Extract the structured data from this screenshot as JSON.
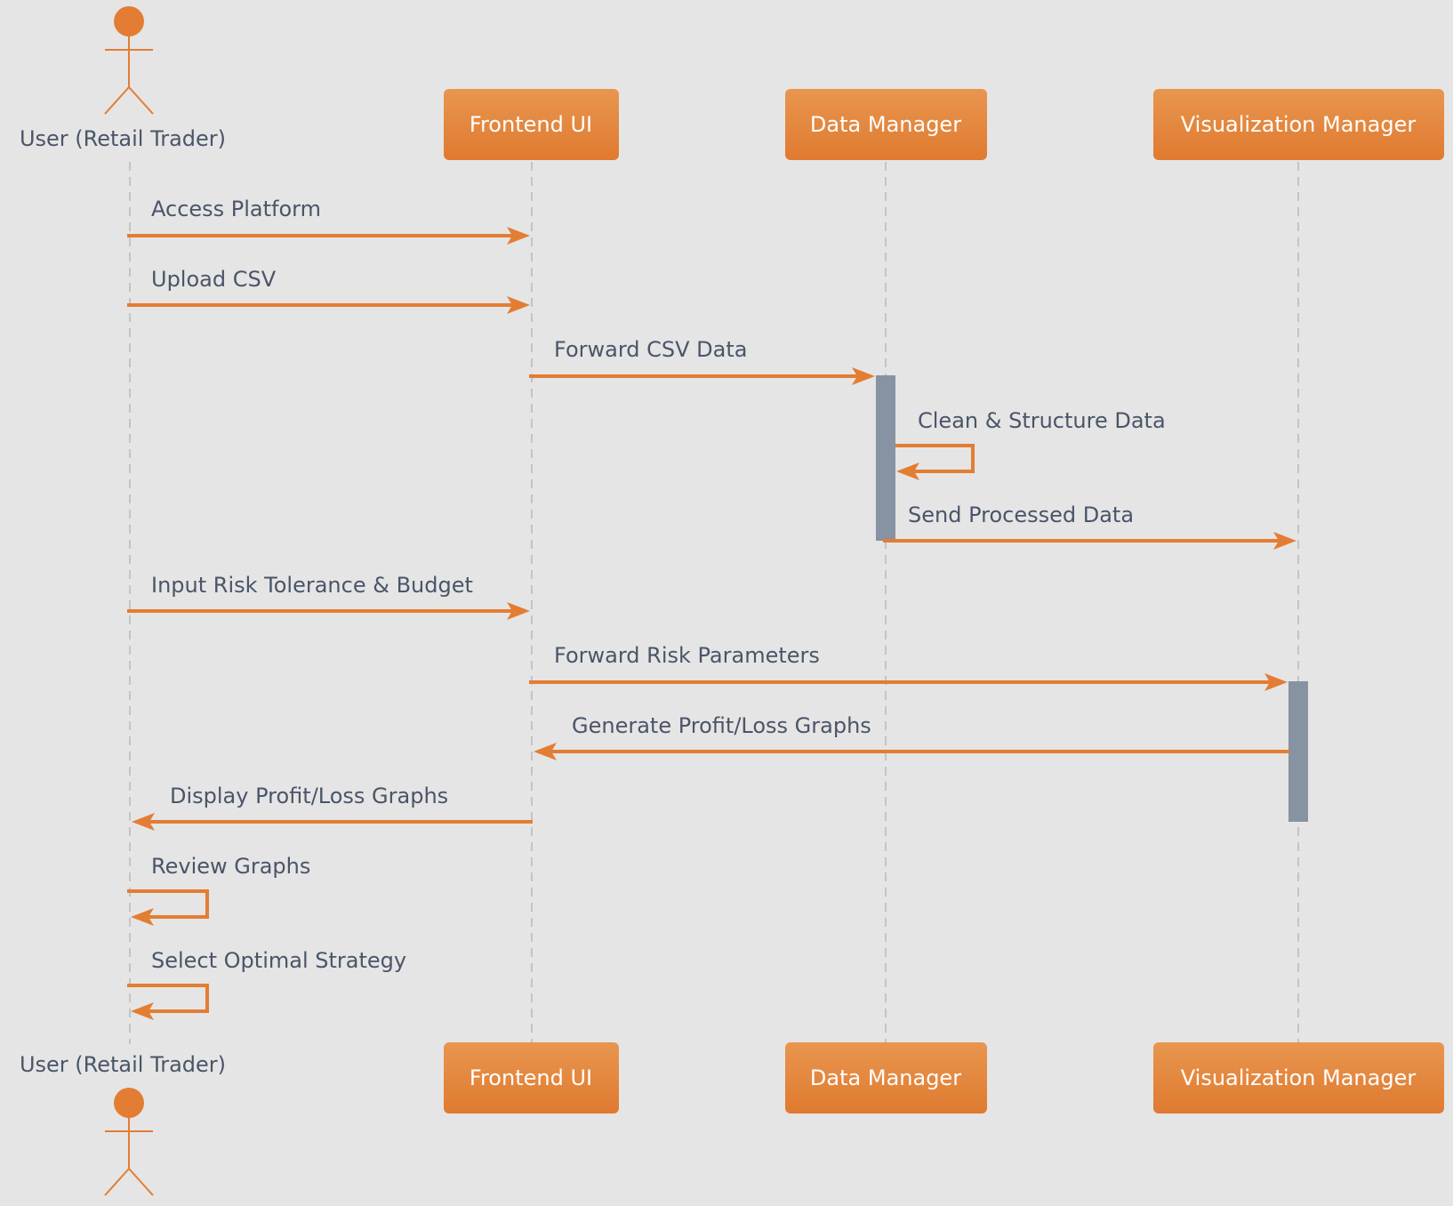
{
  "colors": {
    "background": "#e5e5e5",
    "accent": "#e37d33",
    "box_top": "#e8964f",
    "box_bottom": "#e07a30",
    "text": "#4a5568",
    "activation": "#8793a2",
    "lifeline": "#c4c4c4"
  },
  "participants": [
    {
      "id": "user",
      "kind": "actor",
      "label": "User (Retail Trader)",
      "icon": "actor-stick-figure-icon"
    },
    {
      "id": "frontend",
      "kind": "box",
      "label": "Frontend UI"
    },
    {
      "id": "data",
      "kind": "box",
      "label": "Data Manager"
    },
    {
      "id": "viz",
      "kind": "box",
      "label": "Visualization Manager"
    }
  ],
  "messages": [
    {
      "from": "user",
      "to": "frontend",
      "label": "Access Platform"
    },
    {
      "from": "user",
      "to": "frontend",
      "label": "Upload CSV"
    },
    {
      "from": "frontend",
      "to": "data",
      "label": "Forward CSV Data"
    },
    {
      "from": "data",
      "to": "data",
      "label": "Clean & Structure Data"
    },
    {
      "from": "data",
      "to": "viz",
      "label": "Send Processed Data"
    },
    {
      "from": "user",
      "to": "frontend",
      "label": "Input Risk Tolerance & Budget"
    },
    {
      "from": "frontend",
      "to": "viz",
      "label": "Forward Risk Parameters"
    },
    {
      "from": "viz",
      "to": "frontend",
      "label": "Generate Profit/Loss Graphs"
    },
    {
      "from": "frontend",
      "to": "user",
      "label": "Display Profit/Loss Graphs"
    },
    {
      "from": "user",
      "to": "user",
      "label": "Review Graphs"
    },
    {
      "from": "user",
      "to": "user",
      "label": "Select Optimal Strategy"
    }
  ],
  "activations": [
    {
      "participant": "data",
      "start_message": 2,
      "end_message": 4
    },
    {
      "participant": "viz",
      "start_message": 6,
      "end_message": 8
    }
  ]
}
